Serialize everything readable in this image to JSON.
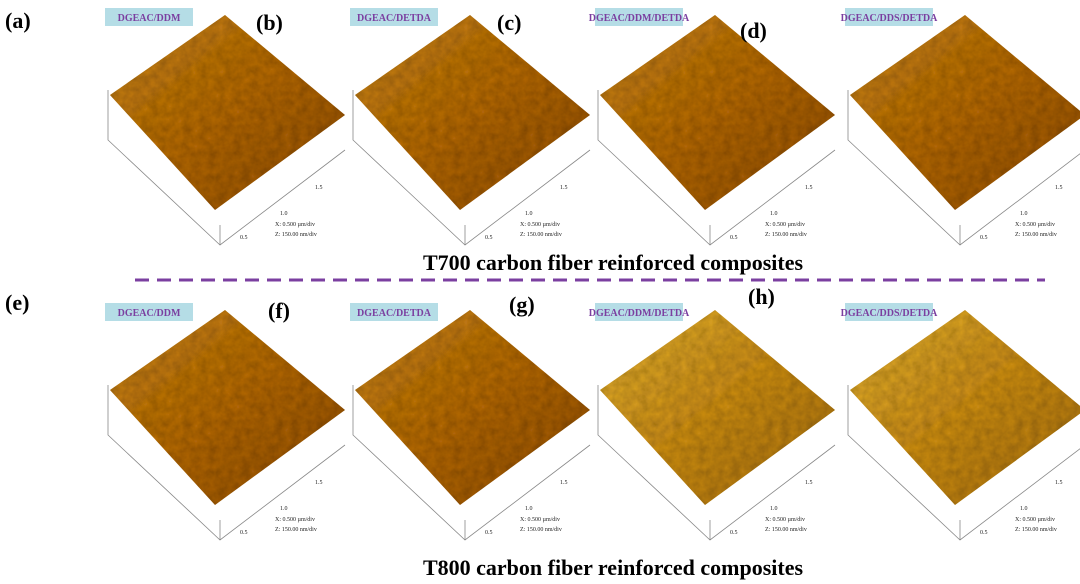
{
  "rows": [
    {
      "caption": "T700 carbon fiber reinforced composites",
      "panels": [
        {
          "label": "(a)",
          "sample": "DGEAC/DDM",
          "ticks": [
            "0.5",
            "1.0",
            "1.5"
          ],
          "x_scale": "X: 0.500 µm/div",
          "z_scale": "Z: 150.00 nm/div"
        },
        {
          "label": "(b)",
          "sample": "DGEAC/DETDA",
          "ticks": [
            "0.5",
            "1.0",
            "1.5"
          ],
          "x_scale": "X: 0.500 µm/div",
          "z_scale": "Z: 150.00 nm/div"
        },
        {
          "label": "(c)",
          "sample": "DGEAC/DDM/DETDA",
          "ticks": [
            "0.5",
            "1.0",
            "1.5"
          ],
          "x_scale": "X: 0.500 µm/div",
          "z_scale": "Z: 150.00 nm/div"
        },
        {
          "label": "(d)",
          "sample": "DGEAC/DDS/DETDA",
          "ticks": [
            "0.5",
            "1.0",
            "1.5"
          ],
          "x_scale": "X: 0.500 µm/div",
          "z_scale": "Z: 150.00 nm/div"
        }
      ]
    },
    {
      "caption": "T800 carbon fiber reinforced composites",
      "panels": [
        {
          "label": "(e)",
          "sample": "DGEAC/DDM",
          "ticks": [
            "0.5",
            "1.0",
            "1.5"
          ],
          "x_scale": "X: 0.500 µm/div",
          "z_scale": "Z: 150.00 nm/div"
        },
        {
          "label": "(f)",
          "sample": "DGEAC/DETDA",
          "ticks": [
            "0.5",
            "1.0",
            "1.5"
          ],
          "x_scale": "X: 0.500 µm/div",
          "z_scale": "Z: 150.00 nm/div"
        },
        {
          "label": "(g)",
          "sample": "DGEAC/DDM/DETDA",
          "ticks": [
            "0.5",
            "1.0",
            "1.5"
          ],
          "x_scale": "X: 0.500 µm/div",
          "z_scale": "Z: 150.00 nm/div"
        },
        {
          "label": "(h)",
          "sample": "DGEAC/DDS/DETDA",
          "ticks": [
            "0.5",
            "1.0",
            "1.5"
          ],
          "x_scale": "X: 0.500 µm/div",
          "z_scale": "Z: 150.00 nm/div"
        }
      ]
    }
  ]
}
